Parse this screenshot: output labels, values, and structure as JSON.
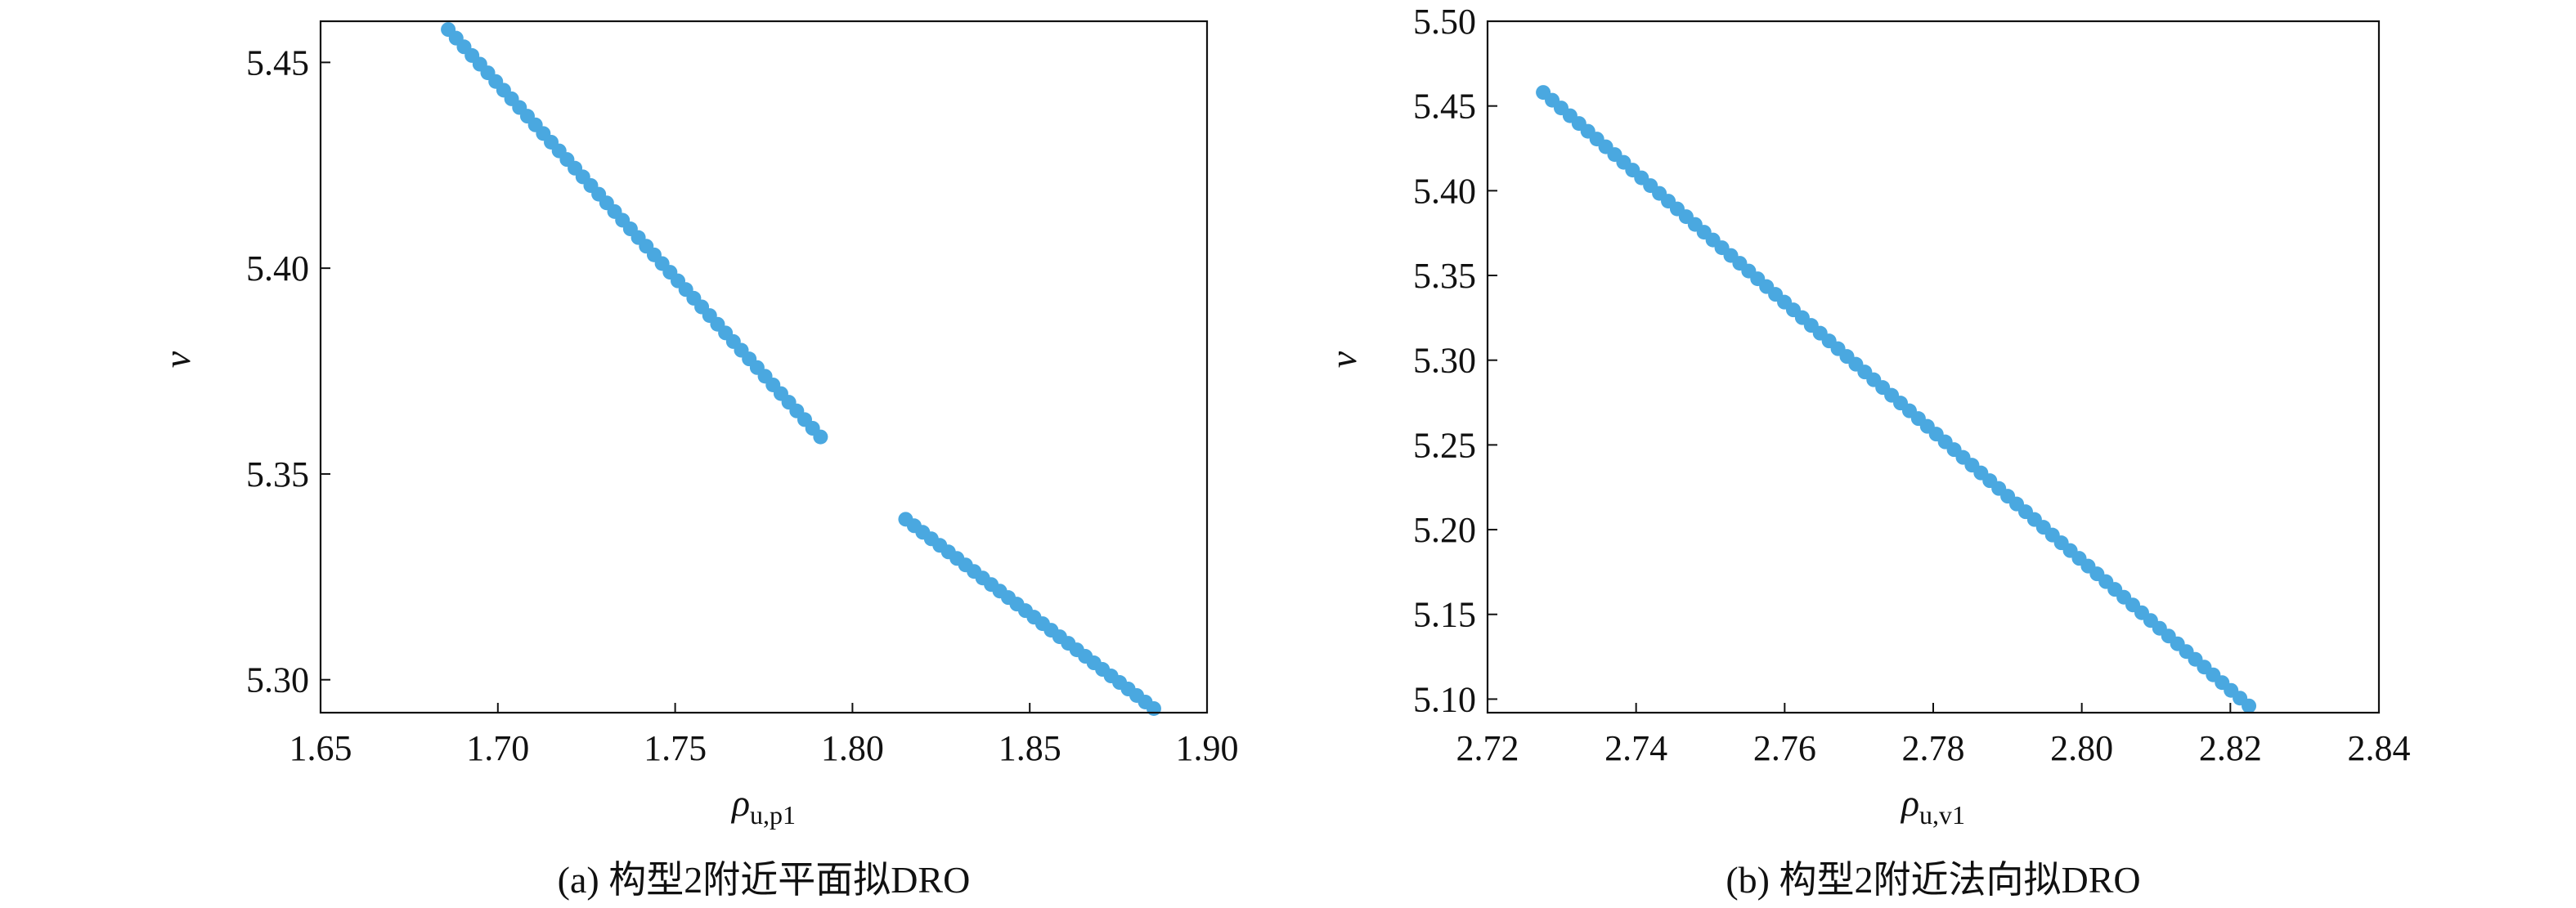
{
  "chart_data": [
    {
      "type": "scatter",
      "caption": "(a) 构型2附近平面拟DRO",
      "xlabel": {
        "symbol": "ρ",
        "subscript": "u,p1"
      },
      "ylabel": "v",
      "xlim": [
        1.65,
        1.9
      ],
      "ylim": [
        5.292,
        5.46
      ],
      "xticks": [
        "1.65",
        "1.70",
        "1.75",
        "1.80",
        "1.85",
        "1.90"
      ],
      "yticks": [
        "5.30",
        "5.35",
        "5.40",
        "5.45"
      ],
      "color": "#4aa8e0",
      "grid": false,
      "series": [
        {
          "segments": [
            {
              "x_start": 1.686,
              "x_end": 1.791,
              "y_start": 5.458,
              "y_end": 5.359,
              "count": 48
            },
            {
              "x_start": 1.815,
              "x_end": 1.885,
              "y_start": 5.339,
              "y_end": 5.293,
              "count": 30
            }
          ]
        }
      ]
    },
    {
      "type": "scatter",
      "caption": "(b) 构型2附近法向拟DRO",
      "xlabel": {
        "symbol": "ρ",
        "subscript": "u,v1"
      },
      "ylabel": "v",
      "xlim": [
        2.72,
        2.84
      ],
      "ylim": [
        5.092,
        5.5
      ],
      "xticks": [
        "2.72",
        "2.74",
        "2.76",
        "2.78",
        "2.80",
        "2.82",
        "2.84"
      ],
      "yticks": [
        "5.10",
        "5.15",
        "5.20",
        "5.25",
        "5.30",
        "5.35",
        "5.40",
        "5.45",
        "5.50"
      ],
      "color": "#4aa8e0",
      "grid": false,
      "series": [
        {
          "segments": [
            {
              "x_start": 2.7275,
              "x_end": 2.8225,
              "y_start": 5.458,
              "y_end": 5.096,
              "count": 80
            }
          ]
        }
      ]
    }
  ]
}
